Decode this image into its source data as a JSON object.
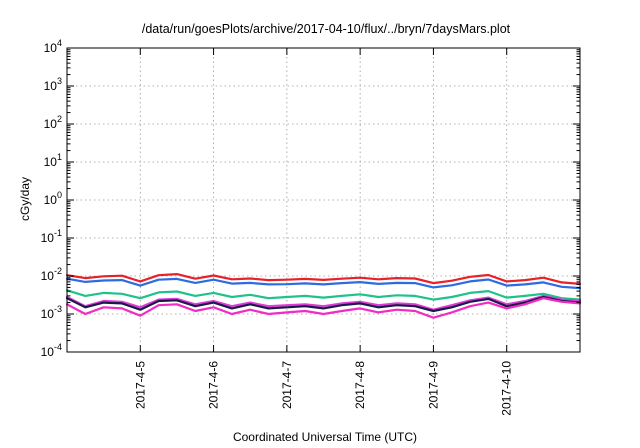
{
  "chart_data": {
    "type": "line",
    "title": "/data/run/goesPlots/archive/2017-04-10/flux/../bryn/7daysMars.plot",
    "xlabel": "Coordinated Universal Time (UTC)",
    "ylabel": "cGy/day",
    "yscale": "log",
    "ylim": [
      0.0001,
      10000
    ],
    "xlim": [
      "2017-04-04",
      "2017-04-11"
    ],
    "grid": true,
    "y_ticks": [
      {
        "base": "10",
        "exp": "4"
      },
      {
        "base": "10",
        "exp": "3"
      },
      {
        "base": "10",
        "exp": "2"
      },
      {
        "base": "10",
        "exp": "1"
      },
      {
        "base": "10",
        "exp": "0"
      },
      {
        "base": "10",
        "exp": "-1"
      },
      {
        "base": "10",
        "exp": "-2"
      },
      {
        "base": "10",
        "exp": "-3"
      },
      {
        "base": "10",
        "exp": "-4"
      }
    ],
    "x_ticks": [
      "2017-4-5",
      "2017-4-6",
      "2017-4-7",
      "2017-4-8",
      "2017-4-9",
      "2017-4-10"
    ],
    "x": [
      "2017-04-04T00:00",
      "2017-04-04T06:00",
      "2017-04-04T12:00",
      "2017-04-04T18:00",
      "2017-04-05T00:00",
      "2017-04-05T06:00",
      "2017-04-05T12:00",
      "2017-04-05T18:00",
      "2017-04-06T00:00",
      "2017-04-06T06:00",
      "2017-04-06T12:00",
      "2017-04-06T18:00",
      "2017-04-07T00:00",
      "2017-04-07T06:00",
      "2017-04-07T12:00",
      "2017-04-07T18:00",
      "2017-04-08T00:00",
      "2017-04-08T06:00",
      "2017-04-08T12:00",
      "2017-04-08T18:00",
      "2017-04-09T00:00",
      "2017-04-09T06:00",
      "2017-04-09T12:00",
      "2017-04-09T18:00",
      "2017-04-10T00:00",
      "2017-04-10T06:00",
      "2017-04-10T12:00",
      "2017-04-10T18:00",
      "2017-04-11T00:00"
    ],
    "series": [
      {
        "color": "#e8202a",
        "values": [
          0.0105,
          0.0088,
          0.0098,
          0.0102,
          0.0072,
          0.0105,
          0.0112,
          0.0085,
          0.0103,
          0.0082,
          0.0086,
          0.0078,
          0.008,
          0.0084,
          0.0079,
          0.0085,
          0.009,
          0.0082,
          0.0088,
          0.0086,
          0.0065,
          0.0075,
          0.0095,
          0.0106,
          0.0072,
          0.0078,
          0.009,
          0.0068,
          0.0062
        ]
      },
      {
        "color": "#2d6be0",
        "values": [
          0.0085,
          0.007,
          0.0076,
          0.0078,
          0.0056,
          0.008,
          0.0084,
          0.0066,
          0.008,
          0.0063,
          0.0066,
          0.006,
          0.0061,
          0.0064,
          0.006,
          0.0065,
          0.0069,
          0.0062,
          0.0066,
          0.0065,
          0.005,
          0.0057,
          0.0072,
          0.0081,
          0.0056,
          0.006,
          0.0068,
          0.0052,
          0.0048
        ]
      },
      {
        "color": "#22c08a",
        "values": [
          0.0042,
          0.003,
          0.0036,
          0.0034,
          0.0026,
          0.0037,
          0.0039,
          0.003,
          0.0036,
          0.0028,
          0.0032,
          0.0026,
          0.0028,
          0.003,
          0.0027,
          0.003,
          0.0033,
          0.0028,
          0.0031,
          0.003,
          0.0024,
          0.0028,
          0.0036,
          0.004,
          0.0027,
          0.003,
          0.0034,
          0.0026,
          0.0024
        ]
      },
      {
        "color": "#e23ad8",
        "values": [
          0.0028,
          0.0016,
          0.0022,
          0.0021,
          0.0015,
          0.0024,
          0.0025,
          0.0018,
          0.0022,
          0.0016,
          0.002,
          0.0016,
          0.0017,
          0.0018,
          0.0016,
          0.0019,
          0.0021,
          0.0017,
          0.0019,
          0.0018,
          0.0013,
          0.0017,
          0.0023,
          0.0027,
          0.0018,
          0.0022,
          0.003,
          0.0024,
          0.0022
        ]
      },
      {
        "color": "#1a1a4a",
        "values": [
          0.0026,
          0.0015,
          0.002,
          0.0019,
          0.0013,
          0.0022,
          0.0023,
          0.0016,
          0.002,
          0.0014,
          0.0018,
          0.0014,
          0.0015,
          0.0016,
          0.0014,
          0.0017,
          0.0019,
          0.0015,
          0.0017,
          0.0016,
          0.0012,
          0.0015,
          0.0021,
          0.0025,
          0.0016,
          0.002,
          0.0028,
          0.0022,
          0.002
        ]
      },
      {
        "color": "#f02cc4",
        "values": [
          0.0018,
          0.001,
          0.0015,
          0.0014,
          0.0009,
          0.0017,
          0.0018,
          0.0012,
          0.0015,
          0.001,
          0.0013,
          0.001,
          0.0011,
          0.0012,
          0.001,
          0.0012,
          0.0014,
          0.0011,
          0.0013,
          0.0012,
          0.0008,
          0.0011,
          0.0016,
          0.002,
          0.0014,
          0.0018,
          0.0026,
          0.0021,
          0.0019
        ]
      }
    ]
  }
}
